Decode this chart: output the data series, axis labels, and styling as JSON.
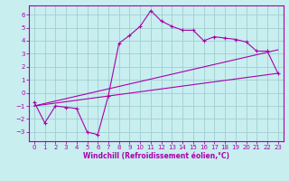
{
  "title": "",
  "xlabel": "Windchill (Refroidissement éolien,°C)",
  "bg_color": "#c8eef0",
  "line_color": "#aa00aa",
  "grid_color": "#a0cece",
  "xlim": [
    -0.5,
    23.5
  ],
  "ylim": [
    -3.7,
    6.7
  ],
  "yticks": [
    -3,
    -2,
    -1,
    0,
    1,
    2,
    3,
    4,
    5,
    6
  ],
  "xticks": [
    0,
    1,
    2,
    3,
    4,
    5,
    6,
    7,
    8,
    9,
    10,
    11,
    12,
    13,
    14,
    15,
    16,
    17,
    18,
    19,
    20,
    21,
    22,
    23
  ],
  "curve1_x": [
    0,
    1,
    2,
    3,
    4,
    5,
    6,
    7,
    8,
    9,
    10,
    11,
    12,
    13,
    14,
    15,
    16,
    17,
    18,
    19,
    20,
    21,
    22,
    23
  ],
  "curve1_y": [
    -0.7,
    -2.3,
    -1.0,
    -1.1,
    -1.2,
    -3.0,
    -3.2,
    -0.2,
    3.8,
    4.4,
    5.1,
    6.3,
    5.5,
    5.1,
    4.8,
    4.8,
    4.0,
    4.3,
    4.2,
    4.1,
    3.9,
    3.2,
    3.2,
    1.5
  ],
  "line2_x": [
    0,
    23
  ],
  "line2_y": [
    -1.0,
    3.3
  ],
  "line3_x": [
    0,
    23
  ],
  "line3_y": [
    -1.0,
    1.5
  ],
  "spine_color": "#aa00aa",
  "tick_color": "#aa00aa",
  "label_fontsize": 5.5,
  "tick_fontsize": 5
}
